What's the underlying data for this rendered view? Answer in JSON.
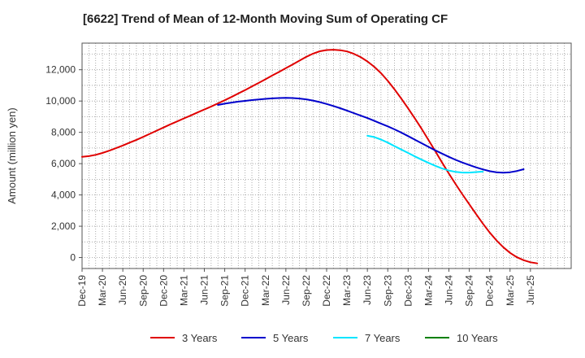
{
  "chart_data": {
    "type": "line",
    "title": "[6622]  Trend of Mean of 12-Month Moving Sum of Operating CF",
    "ylabel": "Amount (million yen)",
    "xlabel": "",
    "ylim": [
      -700,
      13700
    ],
    "yticks": [
      0,
      2000,
      4000,
      6000,
      8000,
      10000,
      12000
    ],
    "ytick_labels": [
      "0",
      "2,000",
      "4,000",
      "6,000",
      "8,000",
      "10,000",
      "12,000"
    ],
    "x_start": "2019-12",
    "x_end": "2025-12",
    "xtick_labels": [
      "Dec-19",
      "Mar-20",
      "Jun-20",
      "Sep-20",
      "Dec-20",
      "Mar-21",
      "Jun-21",
      "Sep-21",
      "Dec-21",
      "Mar-22",
      "Jun-22",
      "Sep-22",
      "Dec-22",
      "Mar-23",
      "Jun-23",
      "Sep-23",
      "Dec-23",
      "Mar-24",
      "Jun-24",
      "Sep-24",
      "Dec-24",
      "Mar-25",
      "Jun-25"
    ],
    "grid": true,
    "legend_position": "bottom",
    "series": [
      {
        "name": "3 Years",
        "color": "#e00000",
        "start": "2019-12",
        "values": [
          6430,
          6480,
          6560,
          6680,
          6830,
          6990,
          7160,
          7340,
          7520,
          7710,
          7910,
          8110,
          8310,
          8510,
          8700,
          8890,
          9080,
          9270,
          9460,
          9650,
          9850,
          10050,
          10260,
          10480,
          10700,
          10930,
          11160,
          11390,
          11630,
          11860,
          12100,
          12340,
          12580,
          12820,
          13030,
          13180,
          13260,
          13280,
          13250,
          13170,
          13020,
          12810,
          12530,
          12190,
          11780,
          11290,
          10740,
          10150,
          9530,
          8880,
          8210,
          7510,
          6790,
          6070,
          5360,
          4680,
          4030,
          3400,
          2780,
          2170,
          1600,
          1100,
          660,
          300,
          20,
          -170,
          -300,
          -370
        ]
      },
      {
        "name": "5 Years",
        "color": "#0000cc",
        "start": "2021-08",
        "values": [
          9750,
          9830,
          9900,
          9960,
          10010,
          10060,
          10100,
          10140,
          10170,
          10190,
          10200,
          10190,
          10160,
          10110,
          10030,
          9930,
          9810,
          9680,
          9540,
          9390,
          9230,
          9070,
          8910,
          8740,
          8560,
          8380,
          8190,
          7980,
          7760,
          7530,
          7300,
          7070,
          6850,
          6640,
          6430,
          6240,
          6070,
          5910,
          5760,
          5630,
          5520,
          5450,
          5420,
          5450,
          5530,
          5640
        ]
      },
      {
        "name": "7 Years",
        "color": "#00e5ff",
        "start": "2023-06",
        "values": [
          7780,
          7700,
          7540,
          7340,
          7120,
          6900,
          6680,
          6460,
          6250,
          6050,
          5860,
          5690,
          5560,
          5470,
          5430,
          5430,
          5460,
          5490
        ]
      },
      {
        "name": "10 Years",
        "color": "#008000",
        "start": "2019-12",
        "values": []
      }
    ]
  }
}
